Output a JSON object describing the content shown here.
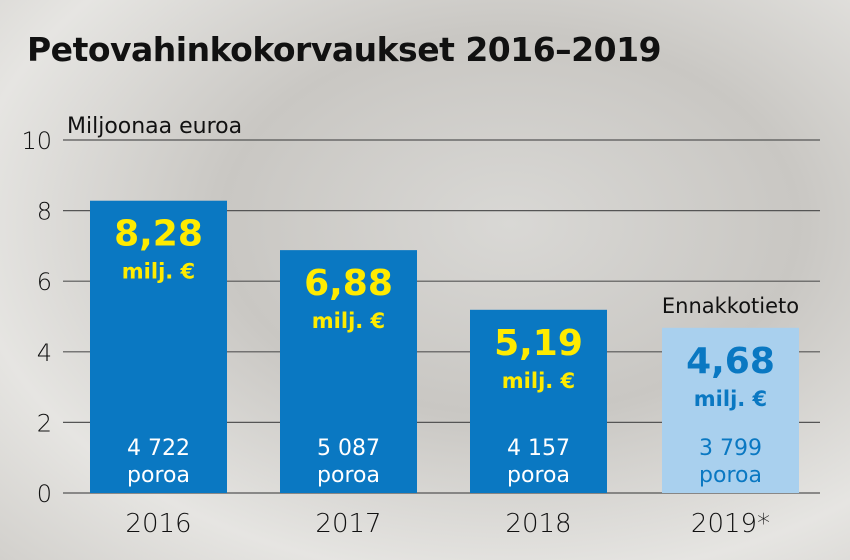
{
  "chart_data": {
    "type": "bar",
    "title": "Petovahinkokorvaukset 2016–2019",
    "ylabel": "Miljoonaa euroa",
    "ylim": [
      0,
      10
    ],
    "yticks": [
      0,
      2,
      4,
      6,
      8,
      10
    ],
    "grid": true,
    "categories": [
      "2016",
      "2017",
      "2018",
      "2019*"
    ],
    "values": [
      8.28,
      6.88,
      5.19,
      4.68
    ],
    "value_labels": [
      "8,28",
      "6,88",
      "5,19",
      "4,68"
    ],
    "unit_label": "milj. €",
    "reindeer_counts": [
      "4 722",
      "5 087",
      "4 157",
      "3 799"
    ],
    "reindeer_unit": "poroa",
    "preliminary_note": "Ennakkotieto",
    "colors": {
      "bar": "#0a78c2",
      "bar_preliminary": "#a9d0ee",
      "value_text": "#ffeb00",
      "value_text_preliminary": "#0a78c2",
      "count_text": "#ffffff",
      "count_text_preliminary": "#0a78c2"
    }
  }
}
